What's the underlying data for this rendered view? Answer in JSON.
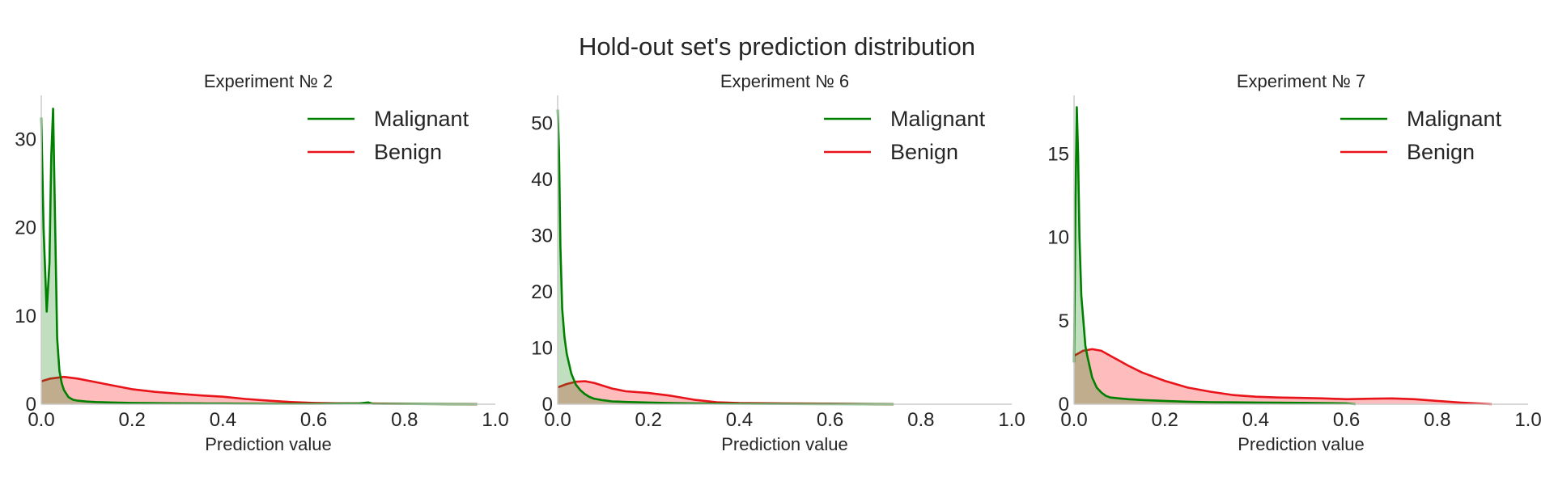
{
  "figure": {
    "title": "Hold-out set's prediction distribution"
  },
  "colors": {
    "Malignant": "#008000",
    "Benign": "#e8141a",
    "Malignant_fill": "rgba(0,128,0,0.25)",
    "Benign_fill": "rgba(255,80,80,0.38)"
  },
  "chart_data": [
    {
      "type": "area",
      "title": "Experiment № 2",
      "xlabel": "Prediction value",
      "ylabel": "",
      "xlim": [
        0,
        1
      ],
      "ylim": [
        0,
        35
      ],
      "xticks": [
        "0.0",
        "0.2",
        "0.4",
        "0.6",
        "0.8",
        "1.0"
      ],
      "yticks": [
        "0",
        "10",
        "20",
        "30"
      ],
      "grid": false,
      "legend": {
        "placement": "top-right",
        "entries": [
          "Malignant",
          "Benign"
        ]
      },
      "series": [
        {
          "name": "Malignant",
          "x": [
            0.0,
            0.005,
            0.012,
            0.018,
            0.022,
            0.026,
            0.03,
            0.035,
            0.04,
            0.045,
            0.05,
            0.06,
            0.07,
            0.08,
            0.1,
            0.12,
            0.15,
            0.2,
            0.25,
            0.3,
            0.35,
            0.4,
            0.5,
            0.6,
            0.7,
            0.72,
            0.73,
            0.8,
            0.9,
            0.96
          ],
          "y": [
            32.5,
            20,
            10.5,
            16,
            28,
            33.5,
            22,
            7.5,
            3.8,
            2.4,
            1.6,
            0.8,
            0.5,
            0.4,
            0.3,
            0.25,
            0.2,
            0.15,
            0.12,
            0.1,
            0.08,
            0.07,
            0.05,
            0.05,
            0.08,
            0.2,
            0.05,
            0.03,
            0.01,
            0.0
          ]
        },
        {
          "name": "Benign",
          "x": [
            0.0,
            0.02,
            0.05,
            0.08,
            0.1,
            0.15,
            0.2,
            0.25,
            0.3,
            0.35,
            0.4,
            0.45,
            0.5,
            0.55,
            0.6,
            0.65,
            0.7,
            0.75,
            0.8,
            0.9,
            0.96
          ],
          "y": [
            2.6,
            2.9,
            3.1,
            2.9,
            2.7,
            2.2,
            1.7,
            1.4,
            1.2,
            1.0,
            0.85,
            0.6,
            0.4,
            0.25,
            0.15,
            0.1,
            0.08,
            0.06,
            0.04,
            0.02,
            0.0
          ]
        }
      ]
    },
    {
      "type": "area",
      "title": "Experiment № 6",
      "xlabel": "Prediction value",
      "ylabel": "",
      "xlim": [
        0,
        1
      ],
      "ylim": [
        0,
        55
      ],
      "xticks": [
        "0.0",
        "0.2",
        "0.4",
        "0.6",
        "0.8",
        "1.0"
      ],
      "yticks": [
        "0",
        "10",
        "20",
        "30",
        "40",
        "50"
      ],
      "grid": false,
      "legend": {
        "placement": "top-right",
        "entries": [
          "Malignant",
          "Benign"
        ]
      },
      "series": [
        {
          "name": "Malignant",
          "x": [
            0.0,
            0.003,
            0.006,
            0.01,
            0.015,
            0.02,
            0.03,
            0.04,
            0.05,
            0.06,
            0.07,
            0.08,
            0.1,
            0.12,
            0.15,
            0.2,
            0.25,
            0.3,
            0.35,
            0.4,
            0.5,
            0.6,
            0.7,
            0.74
          ],
          "y": [
            52.5,
            45,
            28,
            17,
            12,
            9,
            5.5,
            3.5,
            2.5,
            1.8,
            1.3,
            1.0,
            0.7,
            0.5,
            0.4,
            0.3,
            0.2,
            0.15,
            0.1,
            0.08,
            0.05,
            0.03,
            0.01,
            0.0
          ]
        },
        {
          "name": "Benign",
          "x": [
            0.0,
            0.02,
            0.04,
            0.06,
            0.08,
            0.1,
            0.12,
            0.15,
            0.2,
            0.25,
            0.3,
            0.35,
            0.4,
            0.5,
            0.6,
            0.7,
            0.74
          ],
          "y": [
            3.0,
            3.6,
            4.0,
            4.1,
            3.8,
            3.3,
            2.8,
            2.3,
            2.0,
            1.5,
            0.8,
            0.35,
            0.2,
            0.15,
            0.1,
            0.03,
            0.0
          ]
        }
      ]
    },
    {
      "type": "area",
      "title": "Experiment № 7",
      "xlabel": "Prediction value",
      "ylabel": "",
      "xlim": [
        0,
        1
      ],
      "ylim": [
        0,
        18.5
      ],
      "xticks": [
        "0.0",
        "0.2",
        "0.4",
        "0.6",
        "0.8",
        "1.0"
      ],
      "yticks": [
        "0",
        "5",
        "10",
        "15"
      ],
      "grid": false,
      "legend": {
        "placement": "top-right",
        "entries": [
          "Malignant",
          "Benign"
        ]
      },
      "series": [
        {
          "name": "Malignant",
          "x": [
            0.0,
            0.003,
            0.006,
            0.009,
            0.012,
            0.016,
            0.02,
            0.025,
            0.03,
            0.035,
            0.04,
            0.05,
            0.06,
            0.07,
            0.08,
            0.1,
            0.12,
            0.15,
            0.2,
            0.25,
            0.3,
            0.4,
            0.5,
            0.6,
            0.62
          ],
          "y": [
            2.5,
            12,
            17.8,
            15,
            10,
            6.5,
            5.2,
            3.5,
            2.8,
            2.2,
            1.6,
            1.0,
            0.7,
            0.5,
            0.4,
            0.35,
            0.3,
            0.25,
            0.2,
            0.15,
            0.12,
            0.1,
            0.08,
            0.05,
            0.0
          ]
        },
        {
          "name": "Benign",
          "x": [
            0.0,
            0.02,
            0.04,
            0.06,
            0.08,
            0.1,
            0.12,
            0.15,
            0.2,
            0.25,
            0.3,
            0.35,
            0.4,
            0.45,
            0.5,
            0.55,
            0.6,
            0.65,
            0.7,
            0.75,
            0.8,
            0.85,
            0.9,
            0.92
          ],
          "y": [
            2.9,
            3.2,
            3.3,
            3.2,
            2.9,
            2.6,
            2.3,
            1.9,
            1.4,
            1.0,
            0.75,
            0.55,
            0.45,
            0.4,
            0.38,
            0.35,
            0.3,
            0.33,
            0.35,
            0.3,
            0.2,
            0.1,
            0.03,
            0.0
          ]
        }
      ]
    }
  ]
}
